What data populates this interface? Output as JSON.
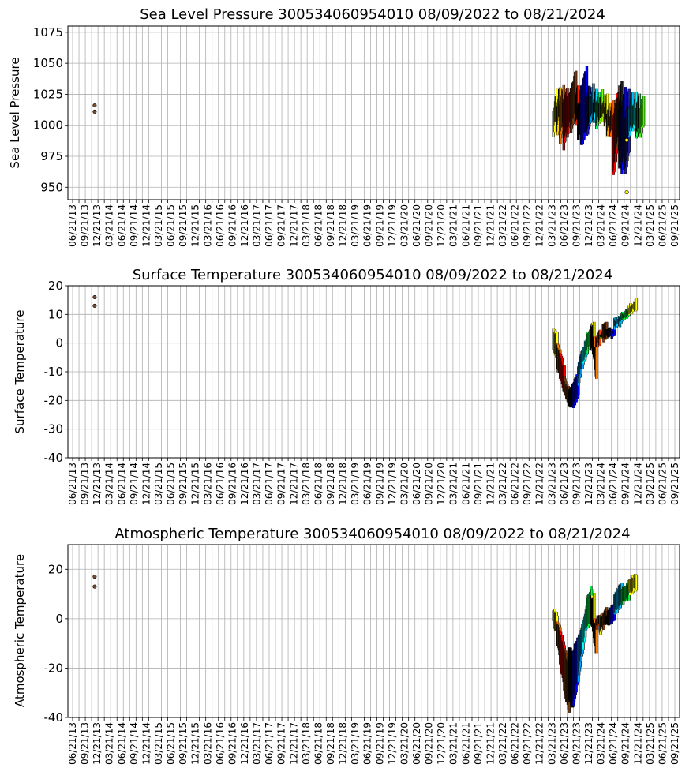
{
  "chart_data": [
    {
      "type": "scatter",
      "title": "Sea Level Pressure 300534060954010  08/09/2022 to 08/21/2024",
      "ylabel": "Sea Level Pressure",
      "ylim": [
        940,
        1080
      ],
      "yticks": [
        950,
        975,
        1000,
        1025,
        1050,
        1075
      ],
      "grid": true,
      "outliers": [
        {
          "t": 0.039,
          "y": 1016,
          "color": "#7a4a2a"
        },
        {
          "t": 0.039,
          "y": 1011,
          "color": "#7a4a2a"
        },
        {
          "t": 0.918,
          "y": 988,
          "color": "#ffff00"
        },
        {
          "t": 0.918,
          "y": 946,
          "color": "#ffff00"
        }
      ],
      "series": [
        {
          "color": "#ffff00",
          "t0": 0.797,
          "t1": 0.803,
          "lo": [
            992,
            1006
          ],
          "hi": [
            1010,
            1028
          ]
        },
        {
          "color": "#ffd000",
          "t0": 0.803,
          "t1": 0.808,
          "lo": [
            990,
            1008
          ],
          "hi": [
            1015,
            1030
          ]
        },
        {
          "color": "#ff7700",
          "t0": 0.808,
          "t1": 0.814,
          "lo": [
            985,
            1002
          ],
          "hi": [
            1018,
            1032
          ]
        },
        {
          "color": "#ff0000",
          "t0": 0.814,
          "t1": 0.82,
          "lo": [
            981,
            998
          ],
          "hi": [
            1020,
            1030
          ]
        },
        {
          "color": "#d01010",
          "t0": 0.82,
          "t1": 0.826,
          "lo": [
            992,
            1005
          ],
          "hi": [
            1022,
            1030
          ]
        },
        {
          "color": "#7a3a10",
          "t0": 0.826,
          "t1": 0.834,
          "lo": [
            995,
            1010
          ],
          "hi": [
            1030,
            1043
          ]
        },
        {
          "color": "#ff2000",
          "t0": 0.834,
          "t1": 0.838,
          "lo": [
            1000,
            1008
          ],
          "hi": [
            1020,
            1034
          ]
        },
        {
          "color": "#000000",
          "t0": 0.838,
          "t1": 0.843,
          "lo": [
            990,
            1000
          ],
          "hi": [
            1015,
            1030
          ]
        },
        {
          "color": "#0000ff",
          "t0": 0.843,
          "t1": 0.852,
          "lo": [
            983,
            998
          ],
          "hi": [
            1030,
            1047
          ]
        },
        {
          "color": "#1515c0",
          "t0": 0.852,
          "t1": 0.857,
          "lo": [
            990,
            1000
          ],
          "hi": [
            1020,
            1032
          ]
        },
        {
          "color": "#00a0ff",
          "t0": 0.857,
          "t1": 0.863,
          "lo": [
            1000,
            1012
          ],
          "hi": [
            1020,
            1032
          ]
        },
        {
          "color": "#00e0ff",
          "t0": 0.863,
          "t1": 0.868,
          "lo": [
            1002,
            1012
          ],
          "hi": [
            1018,
            1030
          ]
        },
        {
          "color": "#00ff60",
          "t0": 0.868,
          "t1": 0.873,
          "lo": [
            998,
            1008
          ],
          "hi": [
            1015,
            1026
          ]
        },
        {
          "color": "#80ff00",
          "t0": 0.873,
          "t1": 0.878,
          "lo": [
            1000,
            1008
          ],
          "hi": [
            1018,
            1028
          ]
        },
        {
          "color": "#c0ff00",
          "t0": 0.878,
          "t1": 0.882,
          "lo": [
            1004,
            1012
          ],
          "hi": [
            1014,
            1024
          ]
        },
        {
          "color": "#ffff00",
          "t0": 0.882,
          "t1": 0.886,
          "lo": [
            998,
            1006
          ],
          "hi": [
            1012,
            1024
          ]
        },
        {
          "color": "#ffa000",
          "t0": 0.886,
          "t1": 0.891,
          "lo": [
            992,
            1002
          ],
          "hi": [
            1008,
            1020
          ]
        },
        {
          "color": "#ff6000",
          "t0": 0.891,
          "t1": 0.896,
          "lo": [
            990,
            1002
          ],
          "hi": [
            1006,
            1020
          ]
        },
        {
          "color": "#ff0000",
          "t0": 0.896,
          "t1": 0.902,
          "lo": [
            958,
            980
          ],
          "hi": [
            1005,
            1026
          ]
        },
        {
          "color": "#6a3a1a",
          "t0": 0.902,
          "t1": 0.906,
          "lo": [
            980,
            995
          ],
          "hi": [
            1015,
            1032
          ]
        },
        {
          "color": "#1a1a1a",
          "t0": 0.906,
          "t1": 0.91,
          "lo": [
            965,
            985
          ],
          "hi": [
            1015,
            1036
          ]
        },
        {
          "color": "#0000ff",
          "t0": 0.91,
          "t1": 0.916,
          "lo": [
            962,
            980
          ],
          "hi": [
            1012,
            1030
          ]
        },
        {
          "color": "#2020a0",
          "t0": 0.916,
          "t1": 0.922,
          "lo": [
            960,
            980
          ],
          "hi": [
            1004,
            1030
          ]
        },
        {
          "color": "#00c0ff",
          "t0": 0.922,
          "t1": 0.928,
          "lo": [
            990,
            1002
          ],
          "hi": [
            1012,
            1028
          ]
        },
        {
          "color": "#00ffff",
          "t0": 0.928,
          "t1": 0.934,
          "lo": [
            995,
            1005
          ],
          "hi": [
            1012,
            1026
          ]
        },
        {
          "color": "#00ff40",
          "t0": 0.934,
          "t1": 0.939,
          "lo": [
            990,
            1000
          ],
          "hi": [
            1014,
            1024
          ]
        },
        {
          "color": "#40ff00",
          "t0": 0.939,
          "t1": 0.946,
          "lo": [
            990,
            1000
          ],
          "hi": [
            1010,
            1024
          ]
        }
      ]
    },
    {
      "type": "scatter",
      "title": "Surface Temperature 300534060954010  08/09/2022 to 08/21/2024",
      "ylabel": "Surface Temperature",
      "ylim": [
        -40,
        20
      ],
      "yticks": [
        -40,
        -30,
        -20,
        -10,
        0,
        10,
        20
      ],
      "grid": true,
      "outliers": [
        {
          "t": 0.039,
          "y": 16,
          "color": "#7a4a2a"
        },
        {
          "t": 0.039,
          "y": 13,
          "color": "#7a4a2a"
        }
      ],
      "series": [
        {
          "color": "#ffff00",
          "t0": 0.797,
          "t1": 0.803,
          "lo": [
            -2,
            -5
          ],
          "hi": [
            5,
            3
          ]
        },
        {
          "color": "#ff8000",
          "t0": 0.803,
          "t1": 0.808,
          "lo": [
            -8,
            -12
          ],
          "hi": [
            0,
            -2
          ]
        },
        {
          "color": "#ff0000",
          "t0": 0.808,
          "t1": 0.815,
          "lo": [
            -12,
            -18
          ],
          "hi": [
            -3,
            -8
          ]
        },
        {
          "color": "#7a3a10",
          "t0": 0.815,
          "t1": 0.823,
          "lo": [
            -18,
            -22
          ],
          "hi": [
            -12,
            -16
          ]
        },
        {
          "color": "#000000",
          "t0": 0.823,
          "t1": 0.83,
          "lo": [
            -22,
            -21
          ],
          "hi": [
            -16,
            -14
          ]
        },
        {
          "color": "#0000ff",
          "t0": 0.83,
          "t1": 0.838,
          "lo": [
            -22,
            -18
          ],
          "hi": [
            -14,
            -10
          ]
        },
        {
          "color": "#00a0ff",
          "t0": 0.838,
          "t1": 0.846,
          "lo": [
            -14,
            -8
          ],
          "hi": [
            -8,
            -2
          ]
        },
        {
          "color": "#00ffff",
          "t0": 0.846,
          "t1": 0.853,
          "lo": [
            -8,
            -3
          ],
          "hi": [
            -2,
            2
          ]
        },
        {
          "color": "#00ff40",
          "t0": 0.853,
          "t1": 0.86,
          "lo": [
            -3,
            0
          ],
          "hi": [
            3,
            6
          ]
        },
        {
          "color": "#ffff00",
          "t0": 0.86,
          "t1": 0.864,
          "lo": [
            -2,
            -4
          ],
          "hi": [
            6,
            7
          ]
        },
        {
          "color": "#ff8000",
          "t0": 0.864,
          "t1": 0.868,
          "lo": [
            -5,
            -12
          ],
          "hi": [
            2,
            -2
          ]
        },
        {
          "color": "#ff4000",
          "t0": 0.868,
          "t1": 0.874,
          "lo": [
            -2,
            0
          ],
          "hi": [
            2,
            4
          ]
        },
        {
          "color": "#ffff00",
          "t0": 0.874,
          "t1": 0.879,
          "lo": [
            1,
            2
          ],
          "hi": [
            3,
            4
          ]
        },
        {
          "color": "#7a3a10",
          "t0": 0.879,
          "t1": 0.885,
          "lo": [
            1,
            2
          ],
          "hi": [
            6,
            7
          ]
        },
        {
          "color": "#000000",
          "t0": 0.885,
          "t1": 0.891,
          "lo": [
            2,
            2
          ],
          "hi": [
            4,
            5
          ]
        },
        {
          "color": "#0000ff",
          "t0": 0.891,
          "t1": 0.898,
          "lo": [
            2,
            3
          ],
          "hi": [
            4,
            5
          ]
        },
        {
          "color": "#00c0ff",
          "t0": 0.898,
          "t1": 0.91,
          "lo": [
            5,
            7
          ],
          "hi": [
            8,
            10
          ]
        },
        {
          "color": "#00ff40",
          "t0": 0.91,
          "t1": 0.922,
          "lo": [
            8,
            10
          ],
          "hi": [
            10,
            12
          ]
        },
        {
          "color": "#ffff00",
          "t0": 0.922,
          "t1": 0.934,
          "lo": [
            10,
            12
          ],
          "hi": [
            13,
            15
          ]
        }
      ]
    },
    {
      "type": "scatter",
      "title": "Atmospheric Temperature 300534060954010  08/09/2022 to 08/21/2024",
      "ylabel": "Atmospheric Temperature",
      "ylim": [
        -40,
        30
      ],
      "yticks": [
        -40,
        -20,
        0,
        20
      ],
      "grid": true,
      "outliers": [
        {
          "t": 0.039,
          "y": 17,
          "color": "#7a4a2a"
        },
        {
          "t": 0.039,
          "y": 13,
          "color": "#7a4a2a"
        }
      ],
      "series": [
        {
          "color": "#ffff00",
          "t0": 0.797,
          "t1": 0.803,
          "lo": [
            -2,
            -6
          ],
          "hi": [
            4,
            2
          ]
        },
        {
          "color": "#ff8000",
          "t0": 0.803,
          "t1": 0.808,
          "lo": [
            -10,
            -15
          ],
          "hi": [
            0,
            -4
          ]
        },
        {
          "color": "#ff0000",
          "t0": 0.808,
          "t1": 0.815,
          "lo": [
            -18,
            -28
          ],
          "hi": [
            -4,
            -10
          ]
        },
        {
          "color": "#7a3a10",
          "t0": 0.815,
          "t1": 0.823,
          "lo": [
            -30,
            -37
          ],
          "hi": [
            -12,
            -18
          ]
        },
        {
          "color": "#000000",
          "t0": 0.823,
          "t1": 0.83,
          "lo": [
            -34,
            -36
          ],
          "hi": [
            -12,
            -14
          ]
        },
        {
          "color": "#0000ff",
          "t0": 0.83,
          "t1": 0.838,
          "lo": [
            -35,
            -25
          ],
          "hi": [
            -12,
            -8
          ]
        },
        {
          "color": "#00a0ff",
          "t0": 0.838,
          "t1": 0.846,
          "lo": [
            -25,
            -12
          ],
          "hi": [
            -8,
            -2
          ]
        },
        {
          "color": "#00ffff",
          "t0": 0.846,
          "t1": 0.853,
          "lo": [
            -12,
            -2
          ],
          "hi": [
            -2,
            6
          ]
        },
        {
          "color": "#00ff40",
          "t0": 0.853,
          "t1": 0.86,
          "lo": [
            -4,
            0
          ],
          "hi": [
            8,
            13
          ]
        },
        {
          "color": "#ffff00",
          "t0": 0.86,
          "t1": 0.864,
          "lo": [
            -2,
            -6
          ],
          "hi": [
            8,
            10
          ]
        },
        {
          "color": "#ff8000",
          "t0": 0.864,
          "t1": 0.868,
          "lo": [
            -8,
            -14
          ],
          "hi": [
            0,
            -2
          ]
        },
        {
          "color": "#ff4000",
          "t0": 0.868,
          "t1": 0.874,
          "lo": [
            -4,
            -2
          ],
          "hi": [
            0,
            2
          ]
        },
        {
          "color": "#ffff00",
          "t0": 0.874,
          "t1": 0.879,
          "lo": [
            -6,
            -2
          ],
          "hi": [
            0,
            2
          ]
        },
        {
          "color": "#7a3a10",
          "t0": 0.879,
          "t1": 0.885,
          "lo": [
            -4,
            -2
          ],
          "hi": [
            2,
            4
          ]
        },
        {
          "color": "#000000",
          "t0": 0.885,
          "t1": 0.891,
          "lo": [
            -2,
            -2
          ],
          "hi": [
            2,
            3
          ]
        },
        {
          "color": "#0000ff",
          "t0": 0.891,
          "t1": 0.898,
          "lo": [
            -2,
            0
          ],
          "hi": [
            4,
            6
          ]
        },
        {
          "color": "#00c0ff",
          "t0": 0.898,
          "t1": 0.91,
          "lo": [
            2,
            6
          ],
          "hi": [
            10,
            14
          ]
        },
        {
          "color": "#00ff40",
          "t0": 0.91,
          "t1": 0.922,
          "lo": [
            6,
            8
          ],
          "hi": [
            12,
            15
          ]
        },
        {
          "color": "#ffff00",
          "t0": 0.922,
          "t1": 0.934,
          "lo": [
            10,
            12
          ],
          "hi": [
            16,
            18
          ]
        }
      ]
    }
  ],
  "x_tick_labels": [
    "06/21/13",
    "09/21/13",
    "12/21/13",
    "03/21/14",
    "06/21/14",
    "09/21/14",
    "12/21/14",
    "03/21/15",
    "06/21/15",
    "09/21/15",
    "12/21/15",
    "03/21/16",
    "06/21/16",
    "09/21/16",
    "12/21/16",
    "03/21/17",
    "06/21/17",
    "09/21/17",
    "12/21/17",
    "03/21/18",
    "06/21/18",
    "09/21/18",
    "12/21/18",
    "03/21/19",
    "06/21/19",
    "09/21/19",
    "12/21/19",
    "03/21/20",
    "06/21/20",
    "09/21/20",
    "12/21/20",
    "03/21/21",
    "06/21/21",
    "09/21/21",
    "12/21/21",
    "03/21/22",
    "06/21/22",
    "09/21/22",
    "12/21/22",
    "03/21/23",
    "06/21/23",
    "09/21/23",
    "12/21/23",
    "03/21/24",
    "06/21/24",
    "09/21/24",
    "12/21/24",
    "03/21/25",
    "06/21/25",
    "09/21/25"
  ]
}
